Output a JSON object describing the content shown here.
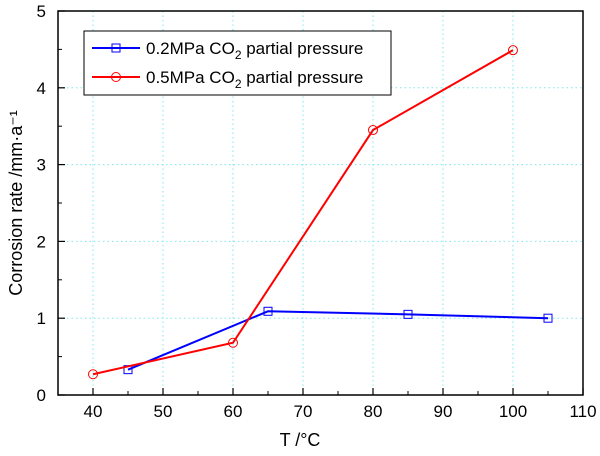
{
  "chart_data": {
    "type": "line",
    "title": "",
    "xlabel": "T /°C",
    "ylabel": "Corrosion rate /mm·a⁻¹",
    "xlim": [
      35,
      110
    ],
    "ylim": [
      0,
      5
    ],
    "xticks": [
      40,
      50,
      60,
      70,
      80,
      90,
      100,
      110
    ],
    "yticks": [
      0,
      1,
      2,
      3,
      4,
      5
    ],
    "grid": true,
    "legend_position": "top-left",
    "series": [
      {
        "name": "0.2MPa CO2 partial pressure",
        "label_main": "0.2MPa CO",
        "label_sub": "2",
        "label_tail": " partial pressure",
        "color": "#0000ff",
        "marker": "square",
        "x": [
          45,
          65,
          85,
          105
        ],
        "y": [
          0.33,
          1.09,
          1.05,
          1.0
        ]
      },
      {
        "name": "0.5MPa CO2 partial pressure",
        "label_main": "0.5MPa CO",
        "label_sub": "2",
        "label_tail": " partial pressure",
        "color": "#ff0000",
        "marker": "circle",
        "x": [
          40,
          60,
          80,
          100
        ],
        "y": [
          0.27,
          0.68,
          3.45,
          4.49
        ]
      }
    ]
  }
}
